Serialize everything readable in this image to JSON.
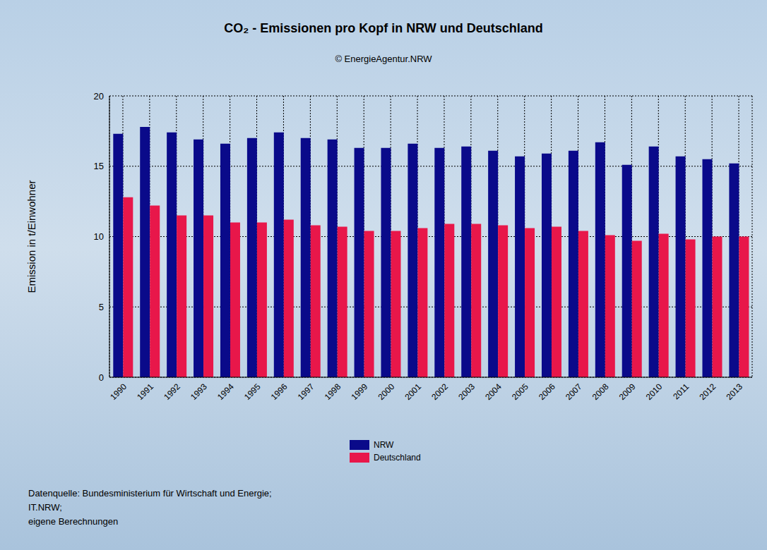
{
  "chart_data": {
    "type": "bar",
    "title": "CO₂ - Emissionen pro Kopf in NRW und Deutschland",
    "subtitle": "© EnergieAgentur.NRW",
    "y_label": "Emission in t/Einwohner",
    "categories": [
      "1990",
      "1991",
      "1992",
      "1993",
      "1994",
      "1995",
      "1996",
      "1997",
      "1998",
      "1999",
      "2000",
      "2001",
      "2002",
      "2003",
      "2004",
      "2005",
      "2006",
      "2007",
      "2008",
      "2009",
      "2010",
      "2011",
      "2012",
      "2013"
    ],
    "series": [
      {
        "name": "NRW",
        "color": "#0a0a8a",
        "values": [
          17.3,
          17.8,
          17.4,
          16.9,
          16.6,
          17.0,
          17.4,
          17.0,
          16.9,
          16.3,
          16.3,
          16.6,
          16.3,
          16.4,
          16.1,
          15.7,
          15.9,
          16.1,
          16.7,
          15.1,
          16.4,
          15.7,
          15.5,
          15.2
        ]
      },
      {
        "name": "Deutschland",
        "color": "#e8174a",
        "values": [
          12.8,
          12.2,
          11.5,
          11.5,
          11.0,
          11.0,
          11.2,
          10.8,
          10.7,
          10.4,
          10.4,
          10.6,
          10.9,
          10.9,
          10.8,
          10.6,
          10.7,
          10.4,
          10.1,
          9.7,
          10.2,
          9.8,
          10.0,
          10.0
        ]
      }
    ],
    "ylim": [
      0,
      20
    ],
    "yticks": [
      0,
      5,
      10,
      15,
      20
    ],
    "grid": true,
    "legend": "bottom",
    "source": [
      "Datenquelle: Bundesministerium für Wirtschaft und Energie;",
      "IT.NRW;",
      "eigene Berechnungen"
    ]
  }
}
